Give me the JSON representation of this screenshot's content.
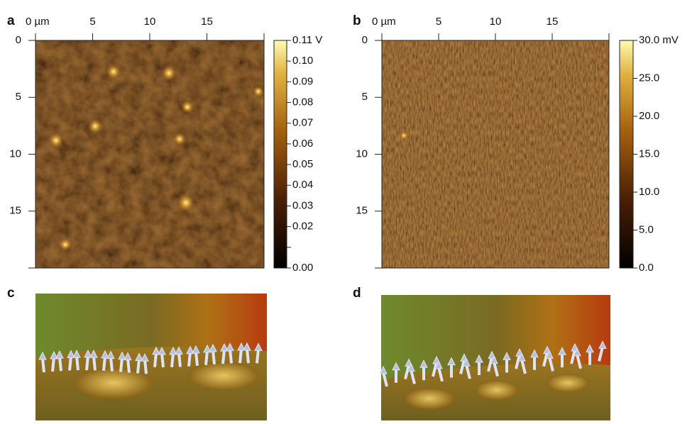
{
  "panels": [
    {
      "label": "a",
      "x_ticks": [
        "0 µm",
        "5",
        "10",
        "15"
      ],
      "y_ticks": [
        "0",
        "5",
        "10",
        "15"
      ],
      "colorbar_ticks": [
        "0.11 V",
        "0.10",
        "0.09",
        "0.08",
        "0.07",
        "0.06",
        "0.05",
        "0.04",
        "0.03",
        "0.02",
        "0.00"
      ]
    },
    {
      "label": "b",
      "x_ticks": [
        "0 µm",
        "5",
        "10",
        "15"
      ],
      "y_ticks": [
        "0",
        "5",
        "10",
        "15"
      ],
      "colorbar_ticks": [
        "30.0 mV",
        "25.0",
        "20.0",
        "15.0",
        "10.0",
        "5.0",
        "0.0"
      ]
    },
    {
      "label": "c"
    },
    {
      "label": "d"
    }
  ]
}
